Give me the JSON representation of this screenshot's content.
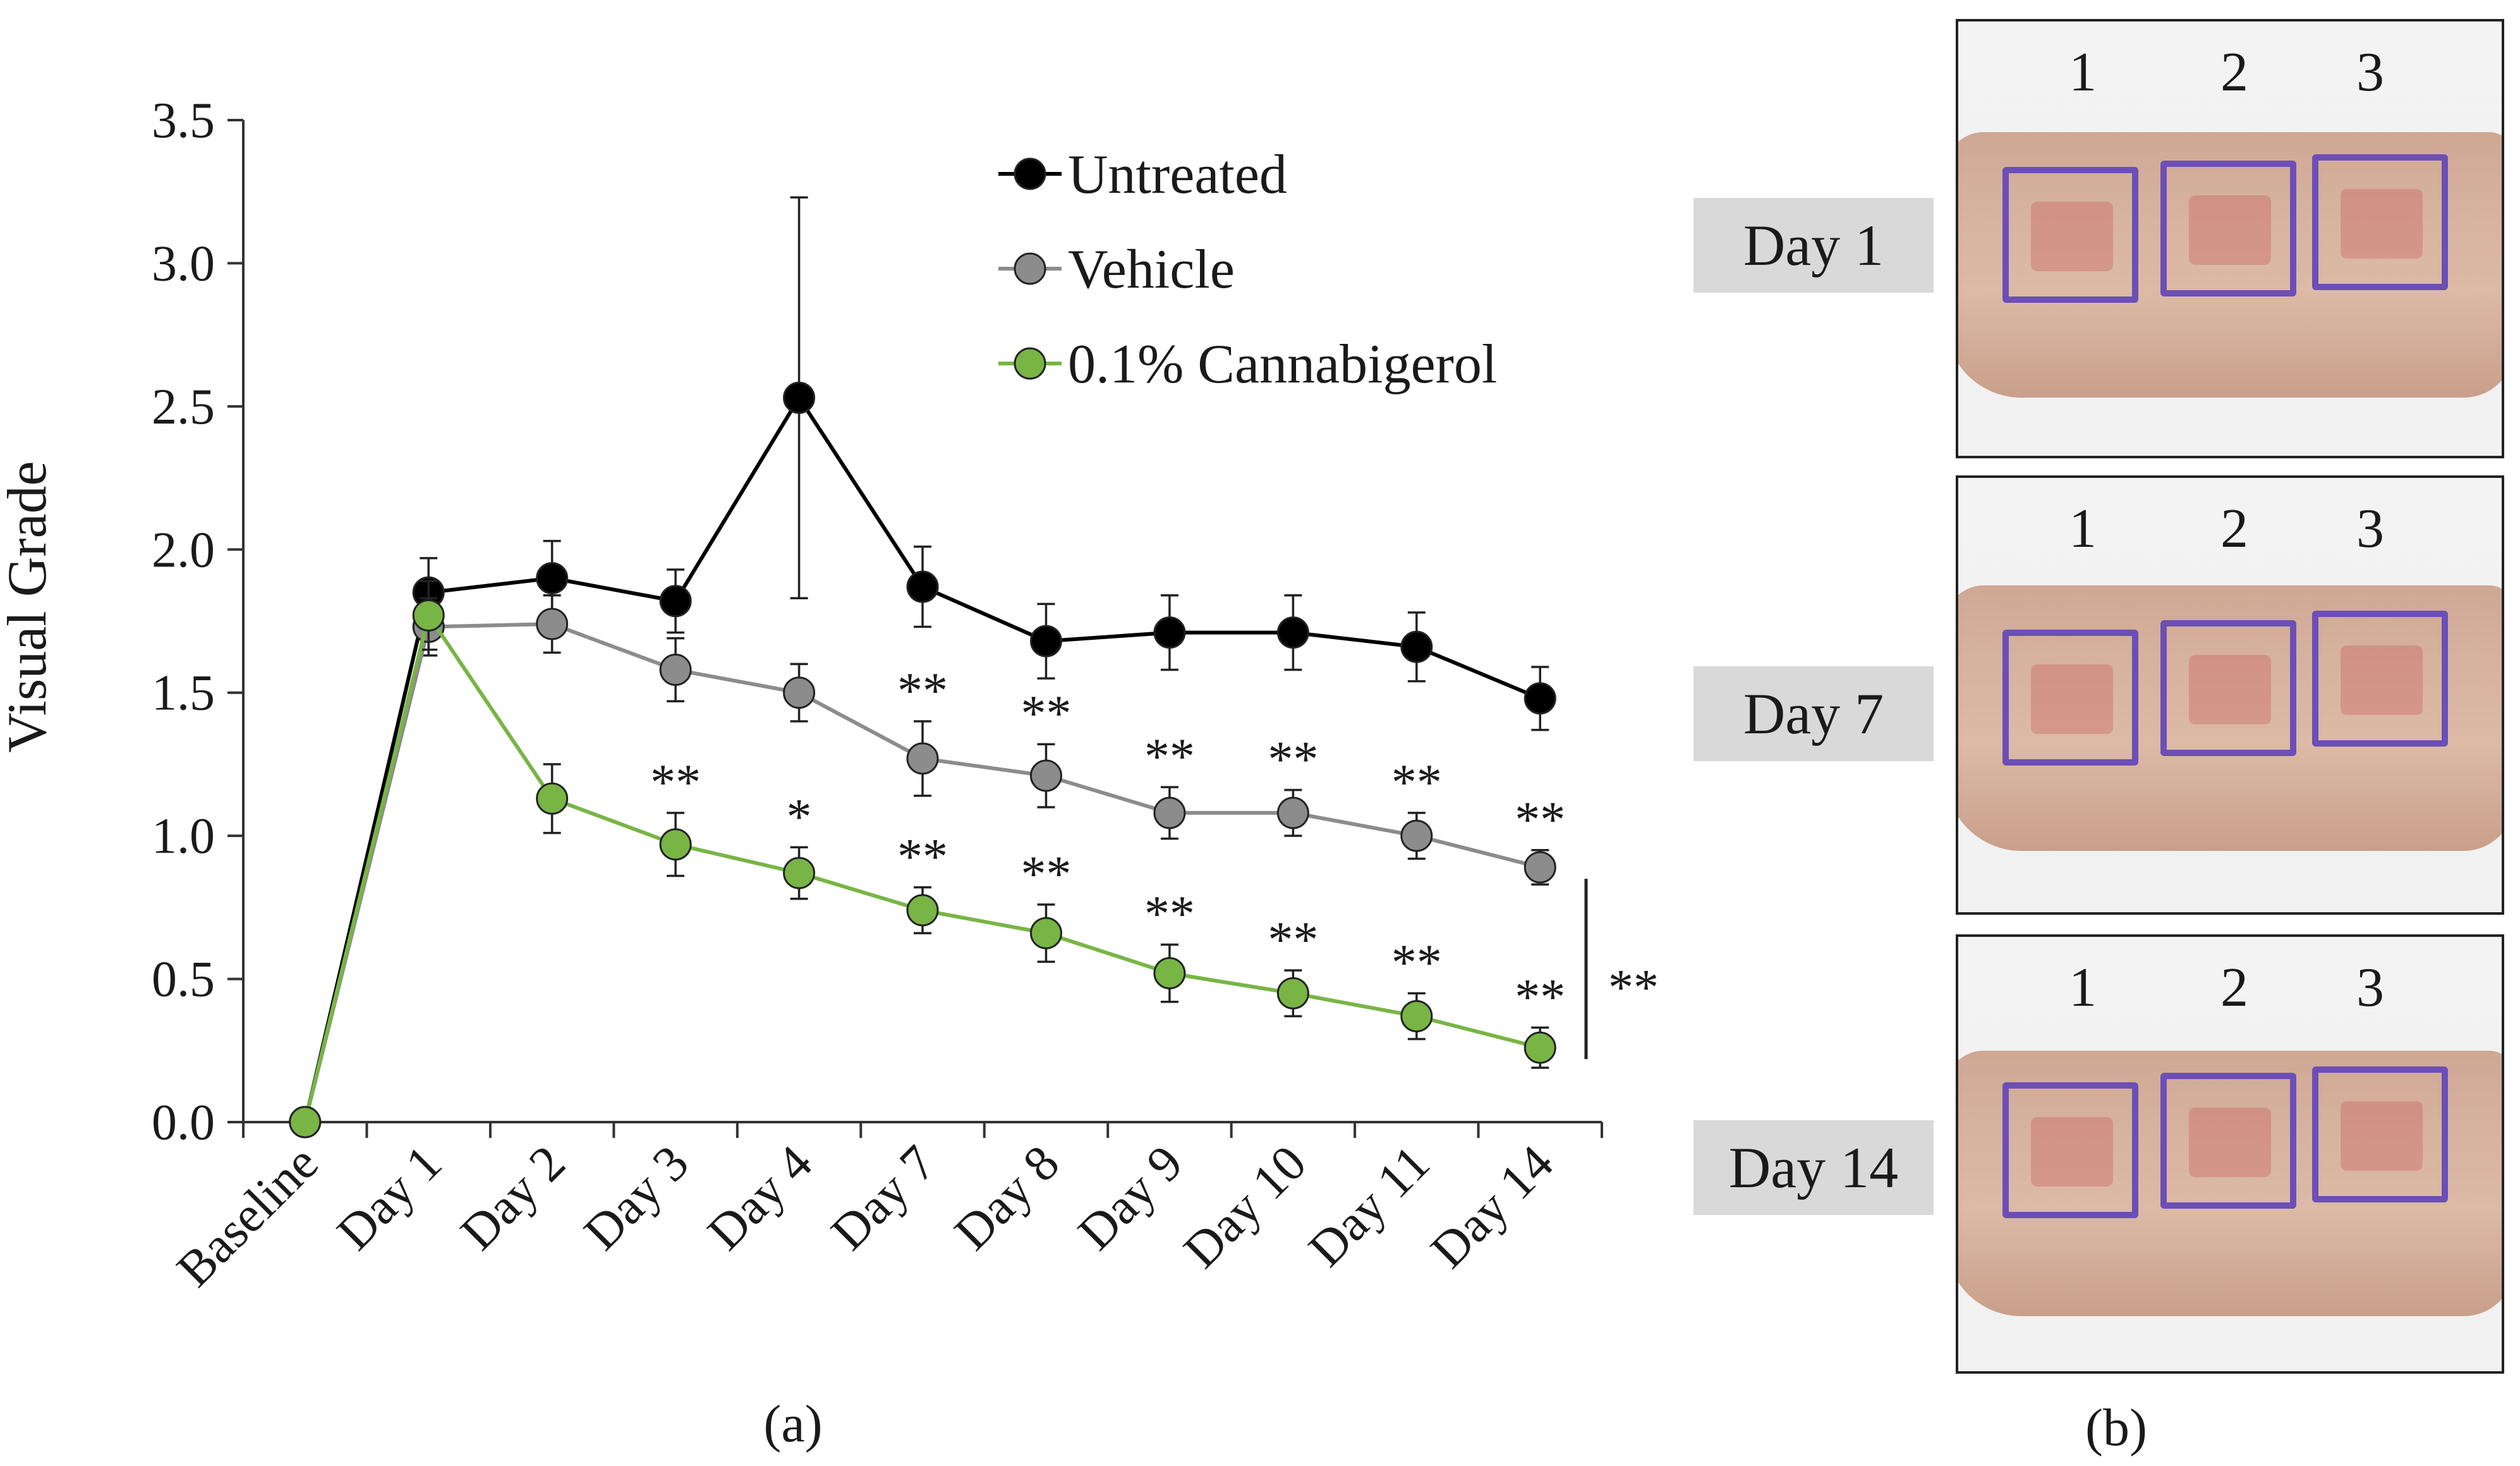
{
  "chart_data": {
    "type": "line",
    "ylabel": "Visual Grade",
    "xlabel": "",
    "ylim": [
      0,
      3.5
    ],
    "yticks": [
      "0.0",
      "0.5",
      "1.0",
      "1.5",
      "2.0",
      "2.5",
      "3.0",
      "3.5"
    ],
    "categories": [
      "Baseline",
      "Day 1",
      "Day 2",
      "Day 3",
      "Day 4",
      "Day 7",
      "Day 8",
      "Day 9",
      "Day 10",
      "Day 11",
      "Day 14"
    ],
    "series": [
      {
        "name": "Untreated",
        "color": "#000000",
        "values": [
          0.0,
          1.85,
          1.9,
          1.82,
          2.53,
          1.87,
          1.68,
          1.71,
          1.71,
          1.66,
          1.48
        ],
        "errors": [
          0.0,
          0.12,
          0.13,
          0.11,
          0.7,
          0.14,
          0.13,
          0.13,
          0.13,
          0.12,
          0.11
        ],
        "annotations": [
          "",
          "",
          "",
          "",
          "",
          "",
          "",
          "",
          "",
          "",
          ""
        ]
      },
      {
        "name": "Vehicle",
        "color": "#8c8c8c",
        "values": [
          0.0,
          1.73,
          1.74,
          1.58,
          1.5,
          1.27,
          1.21,
          1.08,
          1.08,
          1.0,
          0.89
        ],
        "errors": [
          0.0,
          0.1,
          0.1,
          0.11,
          0.1,
          0.13,
          0.11,
          0.09,
          0.08,
          0.08,
          0.06
        ],
        "annotations": [
          "",
          "",
          "",
          "",
          "",
          "**",
          "**",
          "**",
          "**",
          "**",
          "**"
        ]
      },
      {
        "name": "0.1% Cannabigerol",
        "color": "#78b545",
        "values": [
          0.0,
          1.77,
          1.13,
          0.97,
          0.87,
          0.74,
          0.66,
          0.52,
          0.45,
          0.37,
          0.26
        ],
        "errors": [
          0.0,
          0.12,
          0.12,
          0.11,
          0.09,
          0.08,
          0.1,
          0.1,
          0.08,
          0.08,
          0.07
        ],
        "annotations": [
          "",
          "",
          "",
          "**",
          "*",
          "**",
          "**",
          "**",
          "**",
          "**",
          "**"
        ]
      }
    ],
    "bracket_annotation": "**",
    "legend_position": "top-center"
  },
  "panel_a_caption": "(a)",
  "panel_b_caption": "(b)",
  "photos": [
    {
      "day_label": "Day 1",
      "site_numbers": [
        "1",
        "2",
        "3"
      ]
    },
    {
      "day_label": "Day 7",
      "site_numbers": [
        "1",
        "2",
        "3"
      ]
    },
    {
      "day_label": "Day 14",
      "site_numbers": [
        "1",
        "2",
        "3"
      ]
    }
  ]
}
